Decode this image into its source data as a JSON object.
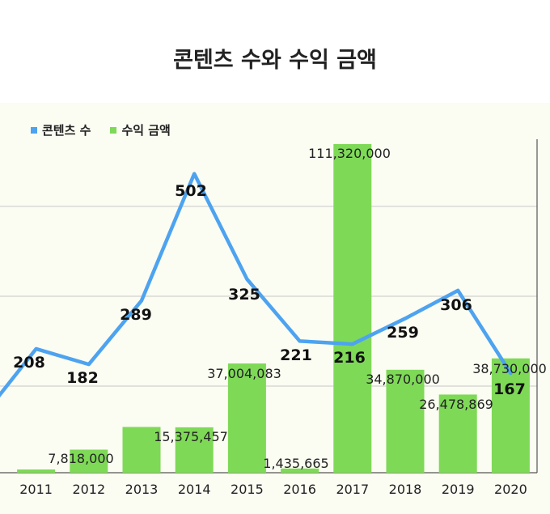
{
  "title": "콘텐츠 수와 수익 금액",
  "legend": [
    {
      "label": "콘텐츠 수",
      "color": "#4da3f0"
    },
    {
      "label": "수익 금액",
      "color": "#7ed957"
    }
  ],
  "chart_data": {
    "type": "bar+line",
    "title": "콘텐츠 수와 수익 금액",
    "categories": [
      "2011",
      "2012",
      "2013",
      "2014",
      "2015",
      "2016",
      "2017",
      "2018",
      "2019",
      "2020"
    ],
    "series": [
      {
        "name": "수익 금액",
        "type": "bar",
        "color": "#7ed957",
        "values": [
          1100000,
          7818000,
          15500000,
          15375457,
          37004083,
          1435665,
          111320000,
          34870000,
          26478869,
          38730000
        ],
        "labels": [
          "",
          "7,818,000",
          "",
          "15,375,457",
          "37,004,083",
          "1,435,665",
          "111,320,000",
          "34,870,000",
          "26,478,869",
          "38,730,000"
        ]
      },
      {
        "name": "콘텐츠 수",
        "type": "line",
        "color": "#4da3f0",
        "values": [
          208,
          182,
          289,
          502,
          325,
          221,
          216,
          259,
          306,
          167
        ],
        "labels": [
          "208",
          "182",
          "289",
          "502",
          "325",
          "221",
          "216",
          "259",
          "306",
          "167"
        ]
      }
    ],
    "bar_ylim": [
      0,
      111320000
    ],
    "line_ylim": [
      0,
      560
    ],
    "grid": true,
    "legend_position": "top-left"
  }
}
